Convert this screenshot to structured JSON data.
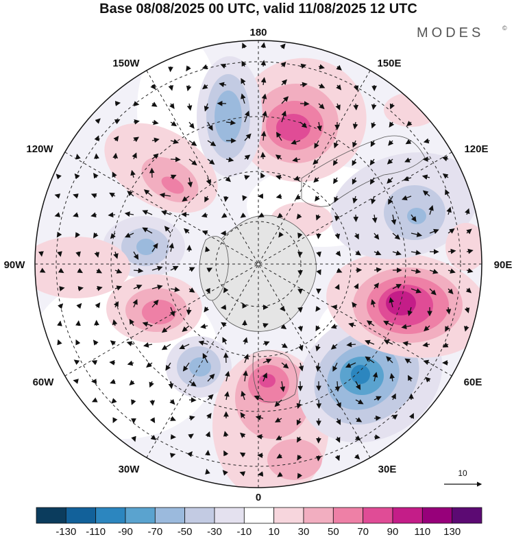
{
  "title": "Base 08/08/2025 00 UTC, valid 11/08/2025 12 UTC",
  "brand": "MODES",
  "brand_mark": "©",
  "longitude_labels": {
    "lon_180": "180",
    "lon_150E": "150E",
    "lon_120E": "120E",
    "lon_90E": "90E",
    "lon_60E": "60E",
    "lon_30E": "30E",
    "lon_0": "0",
    "lon_30W": "30W",
    "lon_60W": "60W",
    "lon_90W": "90W",
    "lon_120W": "120W",
    "lon_150W": "150W"
  },
  "vector_legend": {
    "value": "10"
  },
  "colorbar": {
    "ticks": [
      "-130",
      "-110",
      "-90",
      "-70",
      "-50",
      "-30",
      "-10",
      "10",
      "30",
      "50",
      "70",
      "90",
      "110",
      "130"
    ],
    "colors": [
      "#0b3c5d",
      "#12619a",
      "#2c86bf",
      "#5aa3cf",
      "#9bbadd",
      "#c3cbe3",
      "#e4e1ef",
      "#ffffff",
      "#f7d6dd",
      "#f2aec0",
      "#ee80a6",
      "#e04c96",
      "#c41d88",
      "#97007a",
      "#5c0a73"
    ]
  },
  "anomaly_colors": {
    "neg_weak": "#e4e1ef",
    "neg_mod": "#c3cbe3",
    "neg_strong": "#9bbadd",
    "neg_vstrong": "#5aa3cf",
    "neg_xstrong": "#2c86bf",
    "pos_weak": "#f7d6dd",
    "pos_mod": "#f2aec0",
    "pos_strong": "#ee80a6",
    "pos_vstrong": "#e04c96",
    "pos_xstrong": "#c41d88",
    "land": "#e5e5e5"
  }
}
